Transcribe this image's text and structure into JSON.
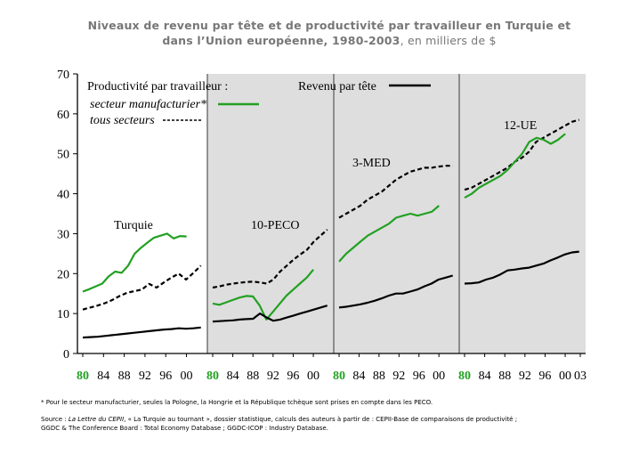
{
  "title": {
    "line1": "Niveaux de revenu par tête et de productivité par travailleur en Turquie et",
    "line2_bold": "dans l’Union européenne, 1980-2003",
    "line2_rest": ", en milliers de $"
  },
  "legend": {
    "heading": "Productivité par travailleur :",
    "manufacturing": "secteur manufacturier*",
    "all_sectors": "tous secteurs",
    "income": "Revenu par tête"
  },
  "colors": {
    "manufacturing": "#22a022",
    "all_sectors": "#000000",
    "income": "#000000",
    "panel_shade": "#dedede"
  },
  "footnote": "* Pour le secteur manufacturier, seules la Pologne, la Hongrie et la République tchèque sont prises en compte dans les PECO.",
  "source": {
    "prefix": "Source : ",
    "publication": "La Lettre du CEPII",
    "line1_rest": ", « La Turquie au tournant », dossier statistique, calculs des auteurs à partir de : CEPII-Base de comparaisons de productivité ;",
    "line2": "GGDC & The Conference Board : Total Economy Database ; GGDC-ICOP : Industry Database."
  },
  "chart_data": {
    "type": "line",
    "ylim": [
      0,
      70
    ],
    "yticks": [
      0,
      10,
      20,
      30,
      40,
      50,
      60,
      70
    ],
    "grid": false,
    "panels": [
      {
        "label": "Turquie",
        "shaded": false,
        "xticks": [
          "80",
          "84",
          "88",
          "92",
          "96",
          "00"
        ],
        "series": {
          "all_sectors": [
            11.0,
            11.5,
            12.0,
            12.6,
            13.4,
            14.4,
            15.2,
            15.6,
            16.0,
            17.4,
            16.5,
            17.8,
            19.0,
            20.0,
            18.5,
            20.2,
            22.0
          ],
          "manufacturing": [
            15.5,
            16.1,
            16.8,
            17.5,
            19.3,
            20.5,
            20.2,
            22.0,
            25.0,
            26.5,
            27.8,
            29.0,
            29.5,
            30.0,
            28.8,
            29.4,
            29.3
          ],
          "income": [
            4.0,
            4.1,
            4.2,
            4.4,
            4.6,
            4.8,
            5.0,
            5.2,
            5.4,
            5.6,
            5.8,
            6.0,
            6.1,
            6.3,
            6.2,
            6.3,
            6.5
          ]
        }
      },
      {
        "label": "10-PECO",
        "shaded": true,
        "xticks": [
          "80",
          "84",
          "88",
          "92",
          "96",
          "00"
        ],
        "series": {
          "all_sectors": [
            16.5,
            16.8,
            17.2,
            17.5,
            17.7,
            17.9,
            18.0,
            17.8,
            17.5,
            18.5,
            20.5,
            22.0,
            23.5,
            24.8,
            26.0,
            28.0,
            29.5,
            31.0
          ],
          "manufacturing": [
            12.5,
            12.2,
            12.8,
            13.4,
            14.0,
            14.4,
            14.3,
            12.0,
            8.5,
            10.5,
            12.5,
            14.5,
            16.0,
            17.5,
            19.0,
            21.0
          ],
          "income": [
            8.0,
            8.1,
            8.2,
            8.3,
            8.5,
            8.6,
            8.7,
            10.0,
            9.0,
            8.2,
            8.5,
            9.0,
            9.5,
            10.0,
            10.5,
            11.0,
            11.5,
            12.0
          ]
        }
      },
      {
        "label": "3-MED",
        "shaded": true,
        "xticks": [
          "80",
          "84",
          "88",
          "92",
          "96",
          "00"
        ],
        "series": {
          "all_sectors": [
            34.0,
            35.0,
            36.0,
            37.0,
            38.5,
            39.5,
            40.5,
            42.0,
            43.5,
            44.5,
            45.5,
            46.0,
            46.5,
            46.5,
            46.8,
            47.0,
            47.0
          ],
          "manufacturing": [
            23.0,
            25.0,
            26.5,
            28.0,
            29.5,
            30.5,
            31.5,
            32.5,
            34.0,
            34.5,
            35.0,
            34.5,
            35.0,
            35.5,
            37.0
          ],
          "income": [
            11.5,
            11.7,
            12.0,
            12.3,
            12.7,
            13.2,
            13.8,
            14.5,
            15.0,
            15.0,
            15.5,
            16.0,
            16.8,
            17.5,
            18.5,
            19.0,
            19.5
          ]
        }
      },
      {
        "label": "12-UE",
        "shaded": true,
        "xticks": [
          "80",
          "84",
          "88",
          "92",
          "96",
          "00",
          "03"
        ],
        "series": {
          "all_sectors": [
            41.0,
            41.5,
            42.5,
            43.5,
            44.5,
            45.5,
            46.5,
            48.0,
            49.0,
            50.5,
            53.0,
            54.0,
            55.0,
            56.0,
            57.0,
            58.0,
            58.5
          ],
          "manufacturing": [
            39.0,
            40.0,
            41.5,
            42.5,
            43.5,
            44.5,
            46.0,
            48.0,
            50.0,
            53.0,
            54.0,
            53.5,
            52.5,
            53.5,
            55.0
          ],
          "income": [
            17.5,
            17.6,
            17.8,
            18.5,
            19.0,
            19.8,
            20.8,
            21.0,
            21.3,
            21.5,
            22.0,
            22.5,
            23.3,
            24.0,
            24.8,
            25.3,
            25.5
          ]
        }
      }
    ]
  }
}
